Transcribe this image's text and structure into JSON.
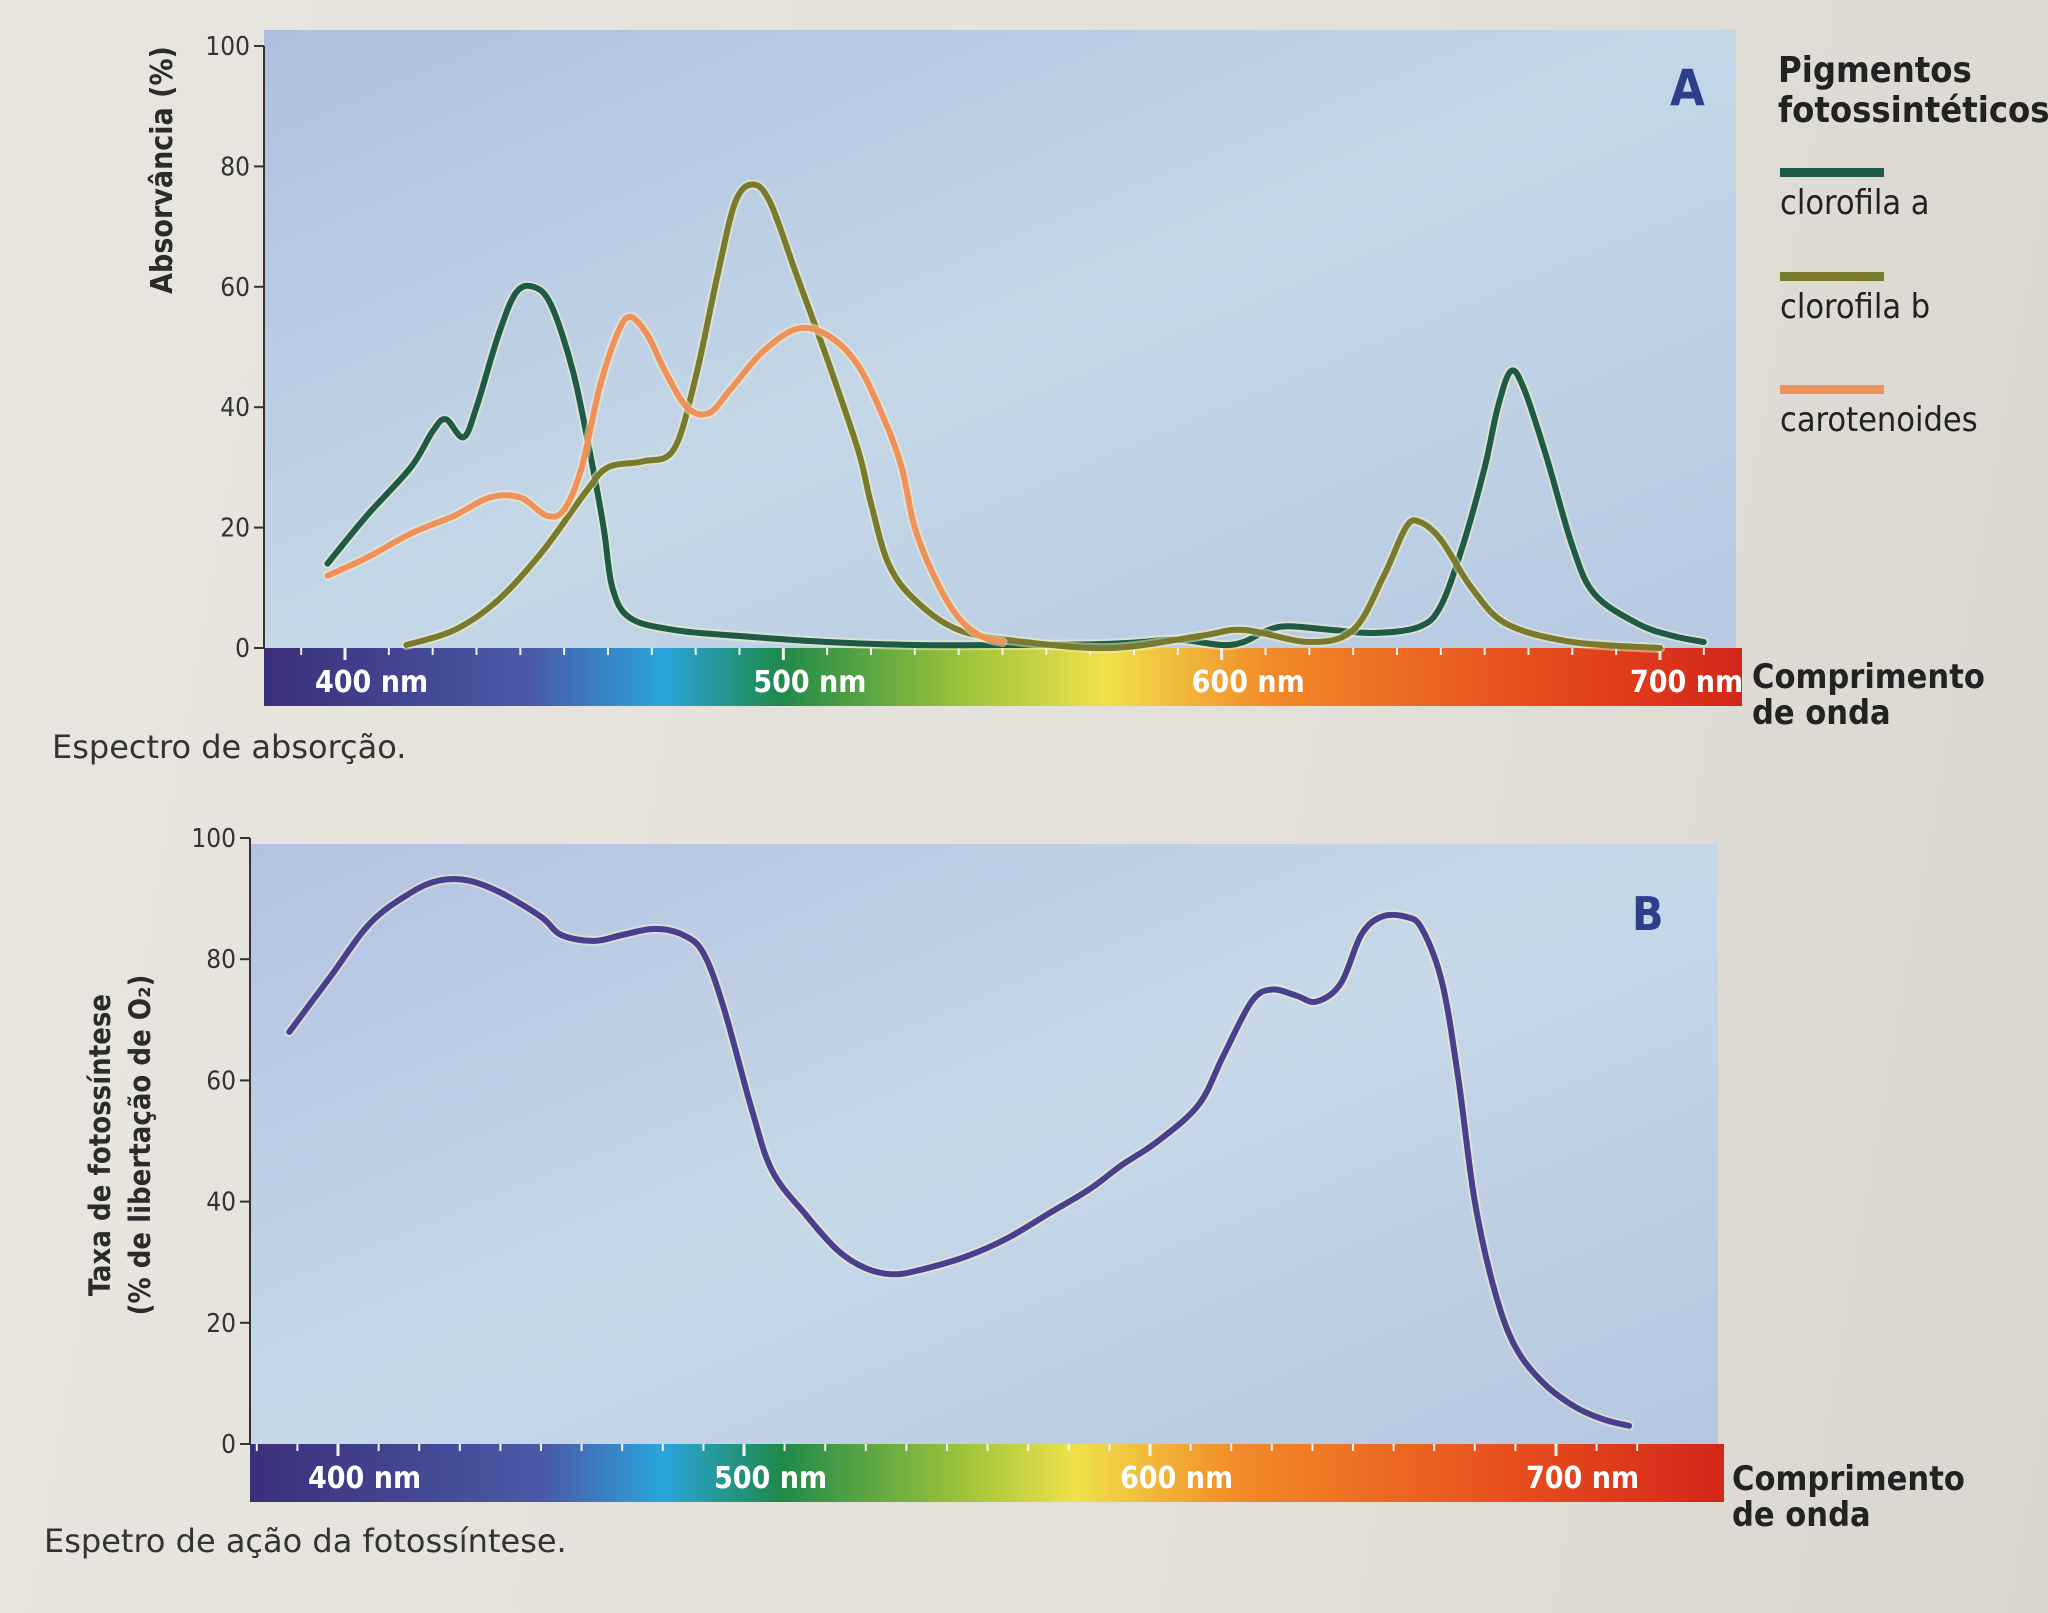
{
  "chart_data": [
    {
      "type": "line",
      "title": "",
      "panel_label": "A",
      "ylabel": "Absorvância (%)",
      "xlabel": "Comprimento de onda",
      "ylim": [
        0,
        100
      ],
      "xlim": [
        390,
        720
      ],
      "yticks": [
        0,
        20,
        40,
        60,
        80,
        100
      ],
      "xticks": [
        {
          "value": 400,
          "label": "400 nm"
        },
        {
          "value": 500,
          "label": "500 nm"
        },
        {
          "value": 600,
          "label": "600 nm"
        },
        {
          "value": 700,
          "label": "700 nm"
        }
      ],
      "legend_title": "Pigmentos fotossintéticos",
      "legend_position": "right",
      "caption": "Espectro de absorção.",
      "series": [
        {
          "name": "clorofila a",
          "color": "#1e5a45",
          "points": [
            [
              396,
              14
            ],
            [
              405,
              22
            ],
            [
              415,
              30
            ],
            [
              420,
              36
            ],
            [
              423,
              38
            ],
            [
              427,
              35
            ],
            [
              430,
              40
            ],
            [
              435,
              52
            ],
            [
              439,
              59
            ],
            [
              443,
              60
            ],
            [
              447,
              57
            ],
            [
              452,
              46
            ],
            [
              456,
              32
            ],
            [
              459,
              20
            ],
            [
              461,
              10
            ],
            [
              465,
              5
            ],
            [
              475,
              3
            ],
            [
              490,
              2
            ],
            [
              510,
              1
            ],
            [
              530,
              0.5
            ],
            [
              550,
              0.5
            ],
            [
              570,
              0.6
            ],
            [
              580,
              0.9
            ],
            [
              590,
              1.4
            ],
            [
              600,
              0.5
            ],
            [
              605,
              1
            ],
            [
              610,
              2.8
            ],
            [
              615,
              3.6
            ],
            [
              625,
              3
            ],
            [
              635,
              2.5
            ],
            [
              645,
              3.5
            ],
            [
              650,
              7
            ],
            [
              655,
              17
            ],
            [
              660,
              30
            ],
            [
              663,
              40
            ],
            [
              666,
              46
            ],
            [
              669,
              43
            ],
            [
              674,
              32
            ],
            [
              680,
              17
            ],
            [
              685,
              9
            ],
            [
              695,
              4
            ],
            [
              703,
              2
            ],
            [
              710,
              1
            ]
          ]
        },
        {
          "name": "clorofila b",
          "color": "#7a7a2e",
          "points": [
            [
              414,
              0.5
            ],
            [
              425,
              3
            ],
            [
              435,
              8
            ],
            [
              445,
              16
            ],
            [
              455,
              26
            ],
            [
              460,
              30
            ],
            [
              468,
              31
            ],
            [
              475,
              33
            ],
            [
              480,
              45
            ],
            [
              485,
              62
            ],
            [
              489,
              74
            ],
            [
              493,
              77
            ],
            [
              497,
              74
            ],
            [
              503,
              62
            ],
            [
              510,
              48
            ],
            [
              517,
              33
            ],
            [
              520,
              24
            ],
            [
              524,
              14
            ],
            [
              530,
              8
            ],
            [
              540,
              3
            ],
            [
              555,
              1
            ],
            [
              575,
              0
            ],
            [
              595,
              2
            ],
            [
              605,
              3
            ],
            [
              620,
              1
            ],
            [
              630,
              3
            ],
            [
              637,
              12
            ],
            [
              642,
              20
            ],
            [
              645,
              21
            ],
            [
              650,
              18
            ],
            [
              657,
              10
            ],
            [
              665,
              4
            ],
            [
              680,
              1
            ],
            [
              700,
              0
            ]
          ]
        },
        {
          "name": "carotenoides",
          "color": "#f0915a",
          "points": [
            [
              396,
              12
            ],
            [
              405,
              15
            ],
            [
              415,
              19
            ],
            [
              425,
              22
            ],
            [
              433,
              25
            ],
            [
              440,
              25
            ],
            [
              446,
              22
            ],
            [
              450,
              23
            ],
            [
              454,
              30
            ],
            [
              458,
              43
            ],
            [
              462,
              52
            ],
            [
              465,
              55
            ],
            [
              469,
              52
            ],
            [
              473,
              46
            ],
            [
              478,
              40
            ],
            [
              483,
              39
            ],
            [
              488,
              43
            ],
            [
              495,
              49
            ],
            [
              503,
              53
            ],
            [
              510,
              52
            ],
            [
              517,
              47
            ],
            [
              523,
              38
            ],
            [
              527,
              30
            ],
            [
              530,
              20
            ],
            [
              535,
              11
            ],
            [
              540,
              5
            ],
            [
              545,
              2
            ],
            [
              550,
              1
            ]
          ]
        }
      ]
    },
    {
      "type": "line",
      "title": "",
      "panel_label": "B",
      "ylabel_line1": "Taxa de fotossíntese",
      "ylabel_line2": "(% de libertação de O₂)",
      "xlabel": "Comprimento de onda",
      "ylim": [
        0,
        100
      ],
      "xlim": [
        380,
        720
      ],
      "yticks": [
        0,
        20,
        40,
        60,
        80,
        100
      ],
      "xticks": [
        {
          "value": 400,
          "label": "400 nm"
        },
        {
          "value": 500,
          "label": "500 nm"
        },
        {
          "value": 600,
          "label": "600 nm"
        },
        {
          "value": 700,
          "label": "700 nm"
        }
      ],
      "caption": "Espetro de ação da fotossíntese.",
      "series": [
        {
          "name": "",
          "color": "#4a3f8f",
          "points": [
            [
              388,
              68
            ],
            [
              398,
              77
            ],
            [
              408,
              86
            ],
            [
              418,
              91
            ],
            [
              425,
              93
            ],
            [
              432,
              93
            ],
            [
              440,
              91
            ],
            [
              450,
              87
            ],
            [
              455,
              84
            ],
            [
              463,
              83
            ],
            [
              470,
              84
            ],
            [
              478,
              85
            ],
            [
              485,
              84
            ],
            [
              490,
              81
            ],
            [
              495,
              72
            ],
            [
              502,
              55
            ],
            [
              507,
              45
            ],
            [
              515,
              38
            ],
            [
              523,
              32
            ],
            [
              530,
              29
            ],
            [
              537,
              28
            ],
            [
              545,
              29
            ],
            [
              555,
              31
            ],
            [
              565,
              34
            ],
            [
              575,
              38
            ],
            [
              585,
              42
            ],
            [
              593,
              46
            ],
            [
              602,
              50
            ],
            [
              612,
              56
            ],
            [
              618,
              64
            ],
            [
              625,
              73
            ],
            [
              630,
              75
            ],
            [
              636,
              74
            ],
            [
              641,
              73
            ],
            [
              647,
              76
            ],
            [
              652,
              84
            ],
            [
              657,
              87
            ],
            [
              663,
              87
            ],
            [
              667,
              85
            ],
            [
              672,
              76
            ],
            [
              676,
              60
            ],
            [
              680,
              40
            ],
            [
              685,
              25
            ],
            [
              690,
              16
            ],
            [
              697,
              10
            ],
            [
              705,
              6
            ],
            [
              712,
              4
            ],
            [
              718,
              3
            ]
          ]
        }
      ]
    }
  ]
}
